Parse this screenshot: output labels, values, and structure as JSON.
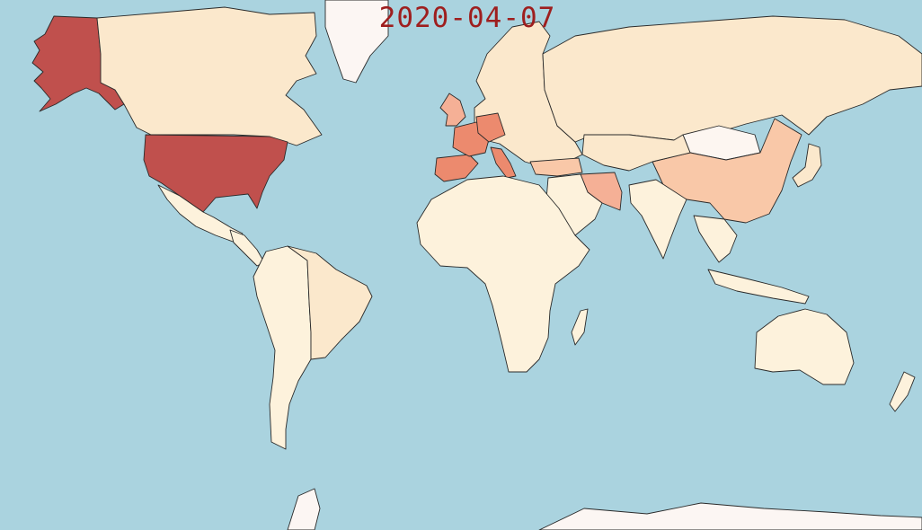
{
  "map": {
    "date_label": "2020-04-07",
    "colors": {
      "ocean": "#aad3df",
      "very_high": "#c0504d",
      "high": "#ec8a6e",
      "elevated": "#f5b096",
      "medium": "#f9c8a8",
      "low": "#fbe8cc",
      "minimal": "#fdf2dc",
      "none": "#fdf6f1",
      "polar": "#fcf6f3"
    },
    "regions": [
      {
        "id": "alaska",
        "level": "very_high"
      },
      {
        "id": "usa",
        "level": "very_high"
      },
      {
        "id": "canada",
        "level": "low"
      },
      {
        "id": "greenland",
        "level": "polar"
      },
      {
        "id": "mexico",
        "level": "minimal"
      },
      {
        "id": "south-america",
        "level": "minimal"
      },
      {
        "id": "brazil",
        "level": "low"
      },
      {
        "id": "africa",
        "level": "minimal"
      },
      {
        "id": "europe",
        "level": "low"
      },
      {
        "id": "spain",
        "level": "high"
      },
      {
        "id": "france",
        "level": "high"
      },
      {
        "id": "italy",
        "level": "high"
      },
      {
        "id": "germany",
        "level": "high"
      },
      {
        "id": "uk",
        "level": "elevated"
      },
      {
        "id": "turkey",
        "level": "medium"
      },
      {
        "id": "iran",
        "level": "elevated"
      },
      {
        "id": "china",
        "level": "medium"
      },
      {
        "id": "mongolia",
        "level": "none"
      },
      {
        "id": "russia",
        "level": "low"
      },
      {
        "id": "india",
        "level": "minimal"
      },
      {
        "id": "australia",
        "level": "minimal"
      },
      {
        "id": "antarctica",
        "level": "polar"
      }
    ]
  }
}
